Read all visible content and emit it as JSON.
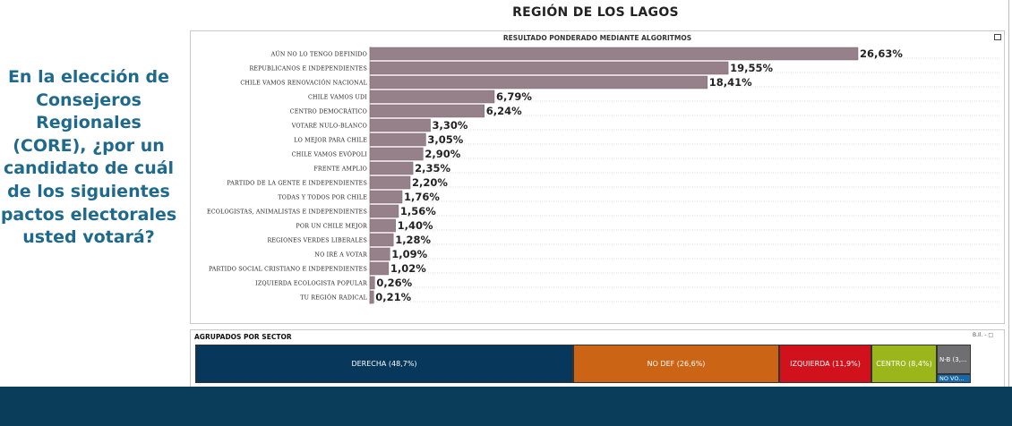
{
  "page": {
    "title": "REGIÓN DE LOS LAGOS",
    "question": "En la elección de Consejeros Regionales (CORE), ¿por un candidato de cuál de los siguientes pactos electorales usted votará?"
  },
  "chart_data": {
    "type": "bar",
    "orientation": "horizontal",
    "title": "RESULTADO PONDERADO MEDIANTE ALGORITMOS",
    "categories": [
      "AÚN NO LO TENGO DEFINIDO",
      "REPUBLICANOS E INDEPENDIENTES",
      "CHILE VAMOS RENOVACIÓN NACIONAL",
      "CHILE VAMOS UDI",
      "CENTRO DEMOCRÁTICO",
      "VOTARÉ NULO-BLANCO",
      "LO MEJOR PARA CHILE",
      "CHILE VAMOS EVÓPOLI",
      "FRENTE AMPLIO",
      "PARTIDO DE LA GENTE E INDEPENDIENTES",
      "TODAS Y TODOS POR CHILE",
      "ECOLOGISTAS, ANIMALISTAS E INDEPENDIENTES",
      "POR UN CHILE MEJOR",
      "REGIONES VERDES LIBERALES",
      "NO IRÉ A VOTAR",
      "PARTIDO SOCIAL CRISTIANO E INDEPENDIENTES",
      "IZQUIERDA ECOLOGISTA POPULAR",
      "TU REGIÓN RADICAL"
    ],
    "values": [
      26.63,
      19.55,
      18.41,
      6.79,
      6.24,
      3.3,
      3.05,
      2.9,
      2.35,
      2.2,
      1.76,
      1.56,
      1.4,
      1.28,
      1.09,
      1.02,
      0.26,
      0.21
    ],
    "data_labels": [
      "26,63%",
      "19,55%",
      "18,41%",
      "6,79%",
      "6,24%",
      "3,30%",
      "3,05%",
      "2,90%",
      "2,35%",
      "2,20%",
      "1,76%",
      "1,56%",
      "1,40%",
      "1,28%",
      "1,09%",
      "1,02%",
      "0,26%",
      "0,21%"
    ],
    "bar_color": "#968089",
    "grid": "dotted horizontal"
  },
  "sectors": {
    "title": "AGRUPADOS POR SECTOR",
    "controls": "B.Il. - □",
    "segments": [
      {
        "label": "DERECHA (48,7%)",
        "value": 48.7,
        "color": "#07375a"
      },
      {
        "label": "NO DEF (26,6%)",
        "value": 26.6,
        "color": "#cc6416"
      },
      {
        "label": "IZQUIERDA (11,9%)",
        "value": 11.9,
        "color": "#d1111b"
      },
      {
        "label": "CENTRO (8,4%)",
        "value": 8.4,
        "color": "#9bb61a"
      },
      {
        "label": "N-B (3,...",
        "value": 3.3,
        "color": "#6f6f72"
      },
      {
        "label": "NO VO...",
        "value": 1.1,
        "color": "#1668a8"
      }
    ]
  },
  "colors": {
    "question_text": "#1f6a8c",
    "footer": "#0a3d5a"
  }
}
